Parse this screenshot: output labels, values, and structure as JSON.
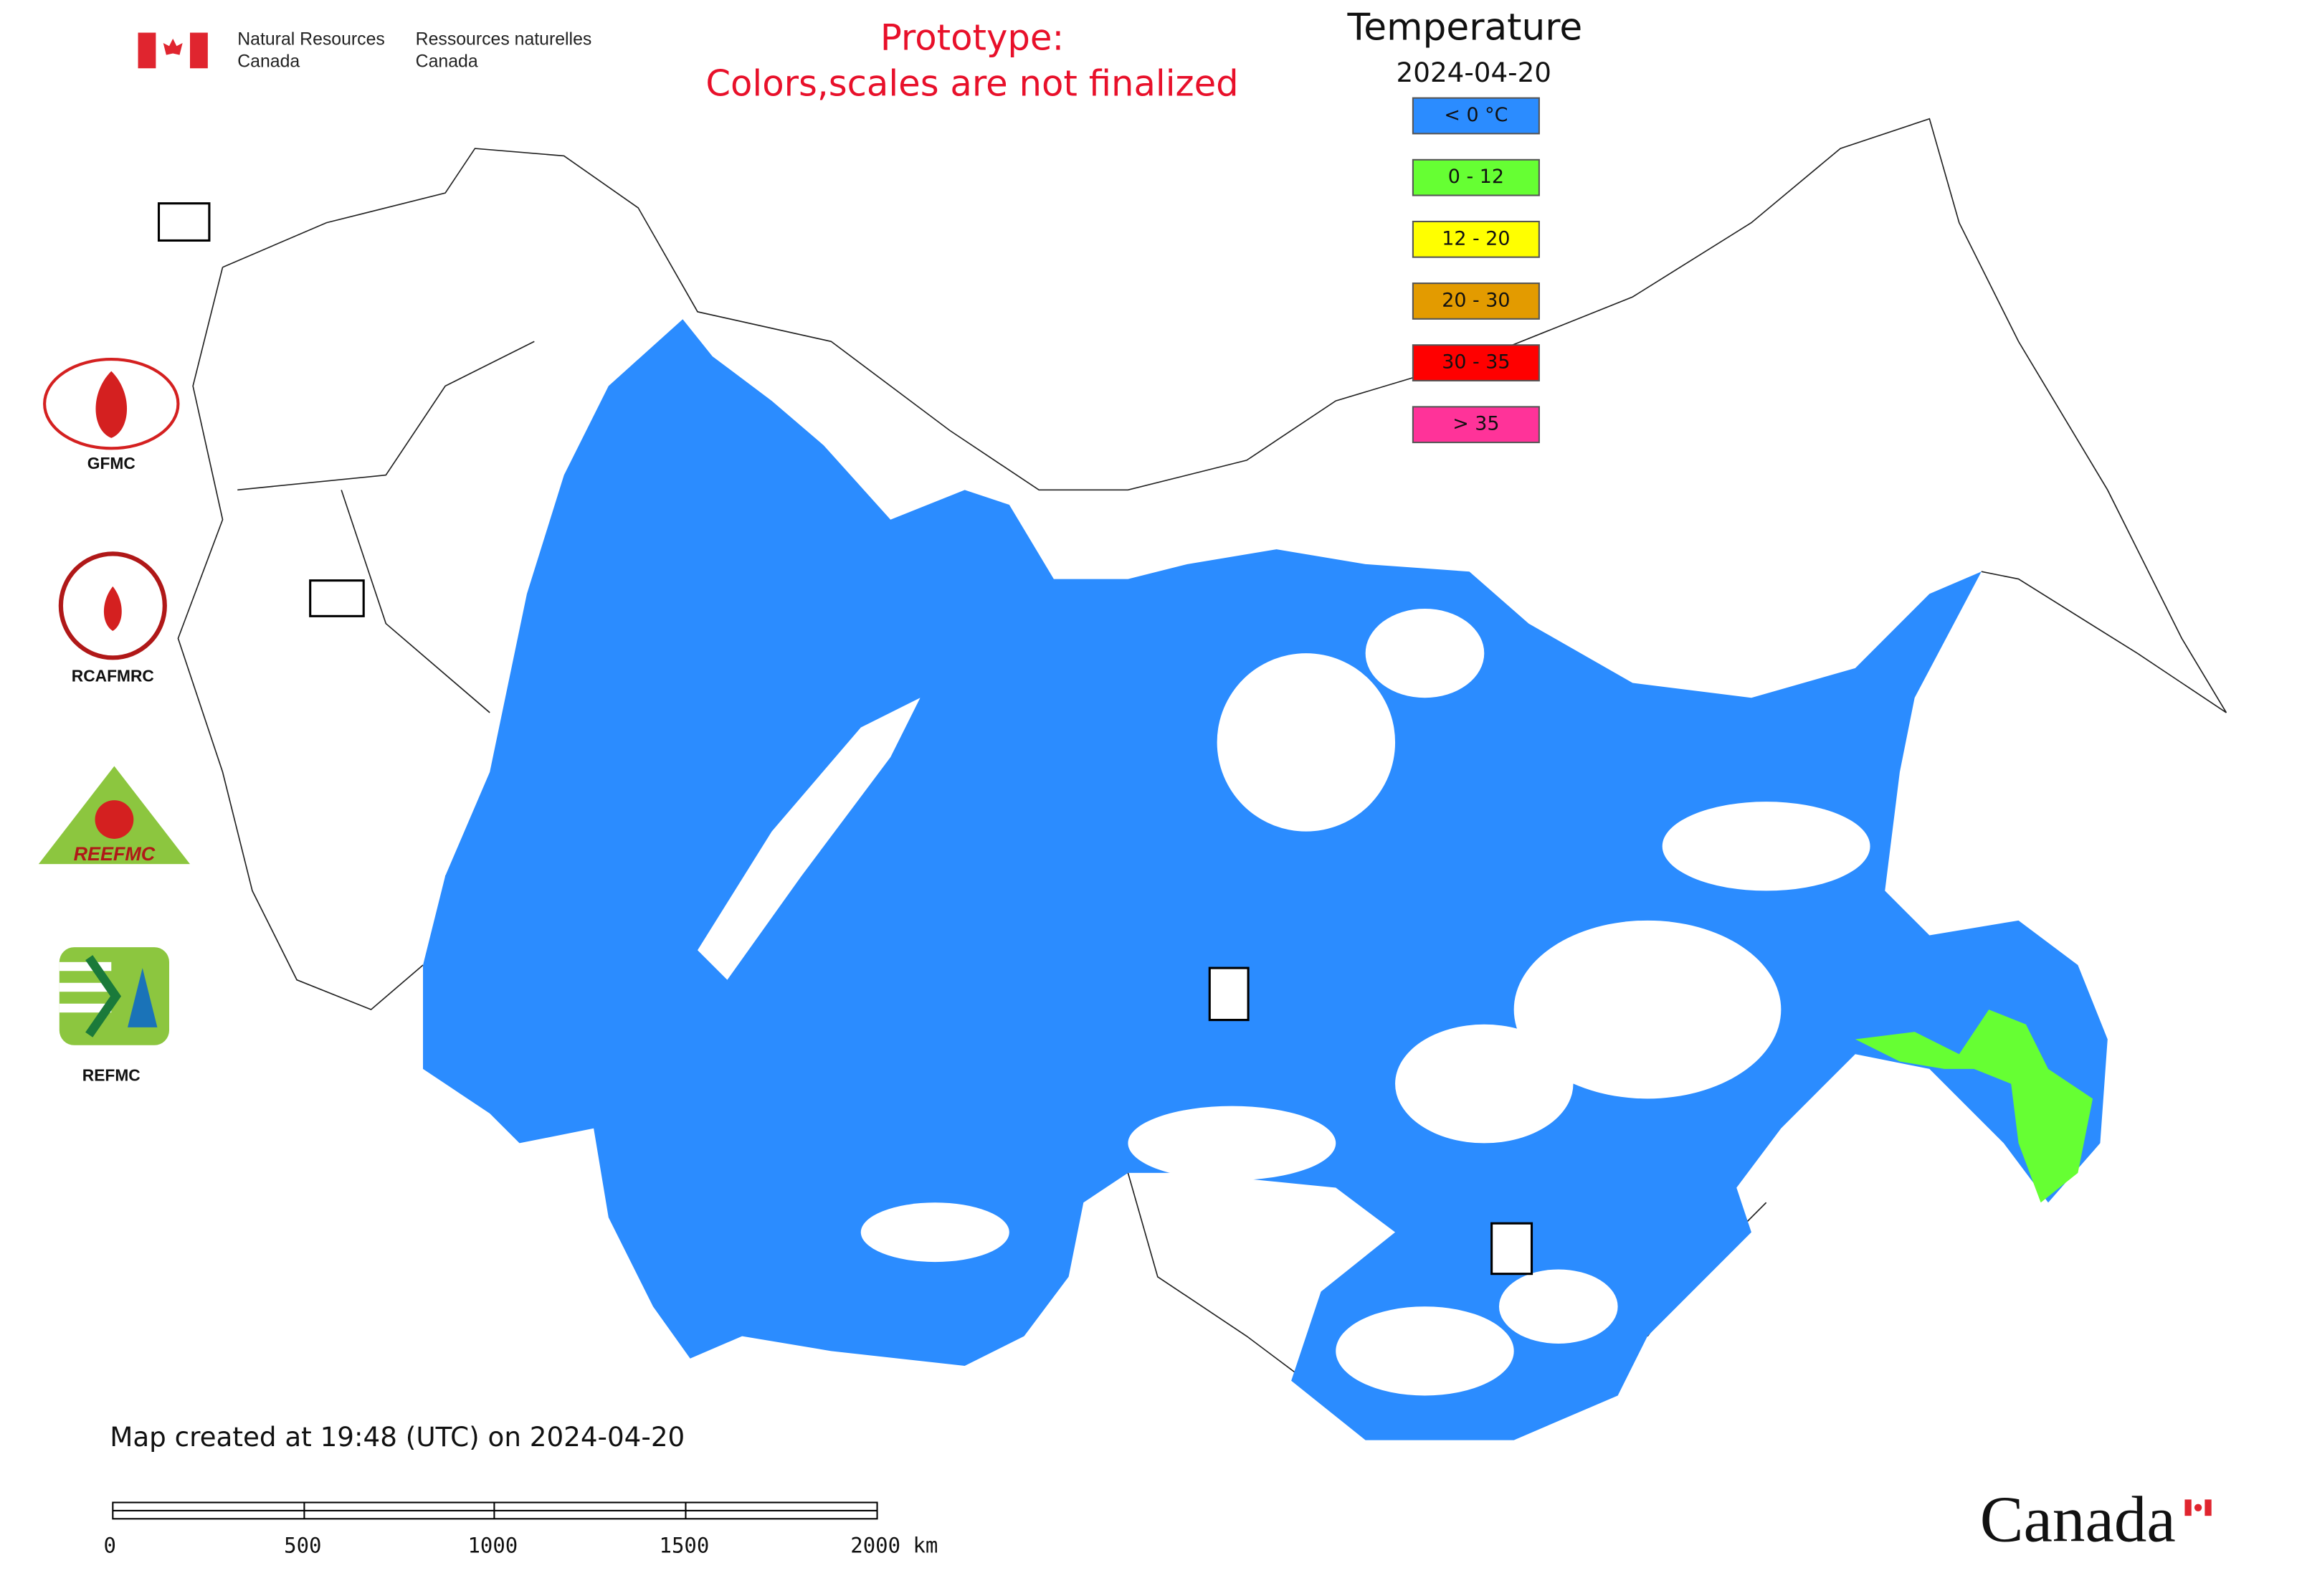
{
  "header": {
    "department_en": {
      "line1": "Natural Resources",
      "line2": "Canada"
    },
    "department_fr": {
      "line1": "Ressources naturelles",
      "line2": "Canada"
    },
    "notice": {
      "line1": "Prototype:",
      "line2": "Colors,scales are not finalized"
    }
  },
  "legend": {
    "title": "Temperature",
    "date": "2024-04-20",
    "items": [
      {
        "label": "< 0 °C",
        "color": "#2b8cff"
      },
      {
        "label": "0 - 12",
        "color": "#66ff33"
      },
      {
        "label": "12 - 20",
        "color": "#ffff00"
      },
      {
        "label": "20 - 30",
        "color": "#e39b00"
      },
      {
        "label": "30 - 35",
        "color": "#ff0000"
      },
      {
        "label": "> 35",
        "color": "#ff3399"
      }
    ]
  },
  "logos": {
    "gfmc": "GFMC",
    "rcafmrc": "RCAFMRC",
    "reefmc": "REEFMC",
    "refmc": "REFMC"
  },
  "caption": "Map created at 19:48 (UTC) on 2024-04-20",
  "scale_bar": {
    "labels": [
      "0",
      "500",
      "1000",
      "1500",
      "2000 km"
    ]
  },
  "wordmark": "Canada"
}
